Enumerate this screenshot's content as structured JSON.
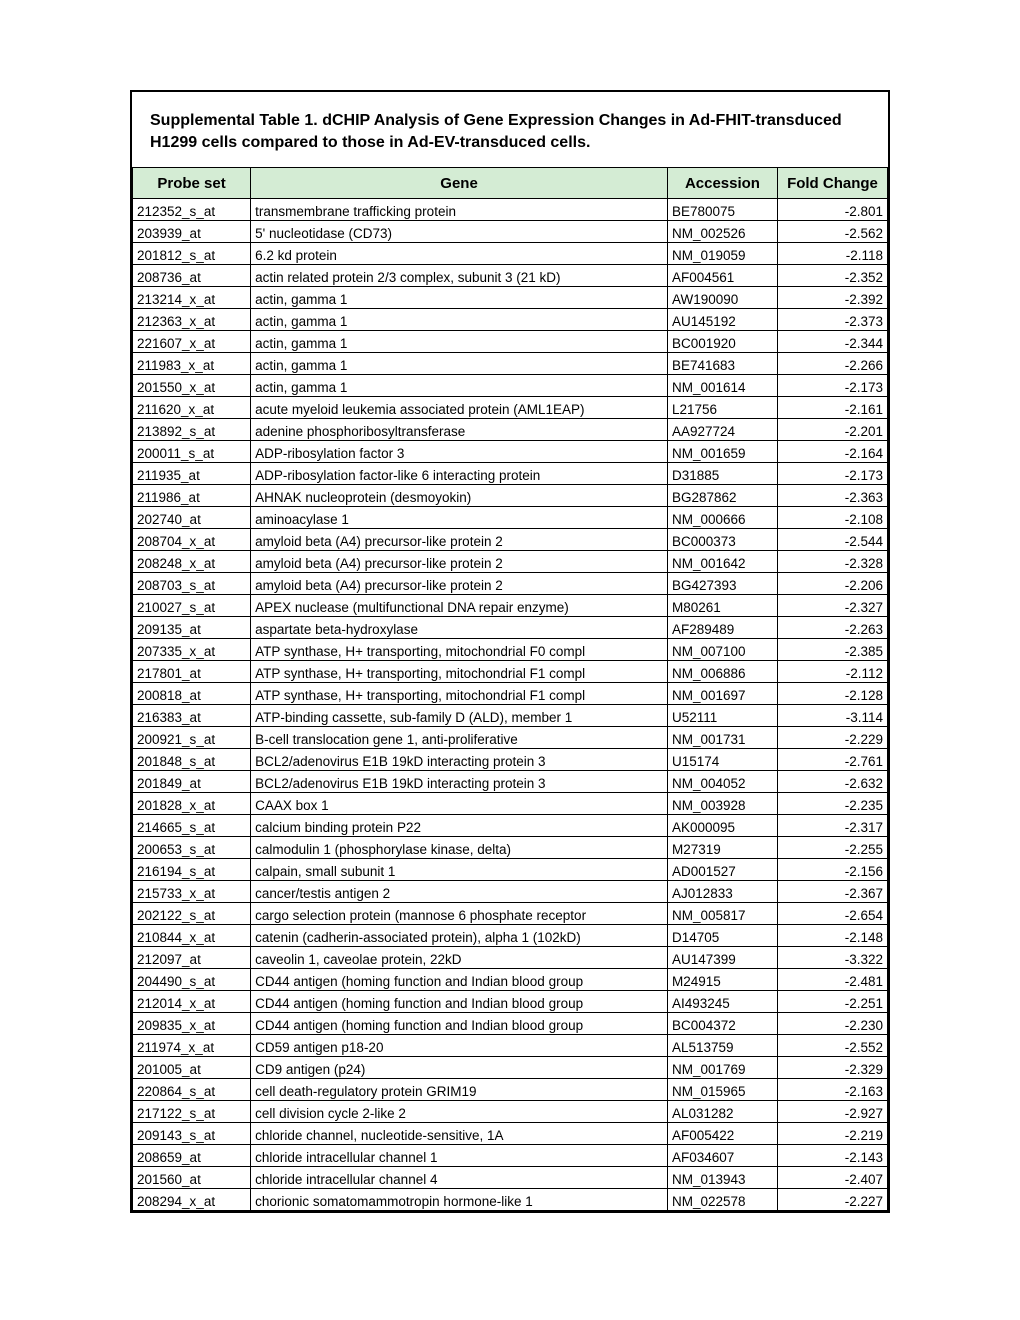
{
  "title": "Supplemental Table 1. dCHIP Analysis of Gene Expression Changes in Ad-FHIT-transduced H1299 cells compared to those in Ad-EV-transduced cells.",
  "columns": [
    "Probe set",
    "Gene",
    "Accession",
    "Fold Change"
  ],
  "header_bg": "#d4ecd4",
  "rows": [
    [
      "212352_s_at",
      " transmembrane trafficking protein",
      "BE780075",
      "-2.801"
    ],
    [
      "203939_at",
      "5' nucleotidase (CD73)",
      "NM_002526",
      "-2.562"
    ],
    [
      "201812_s_at",
      "6.2 kd protein",
      "NM_019059",
      "-2.118"
    ],
    [
      "208736_at",
      "actin related protein 2/3 complex, subunit 3 (21 kD)",
      "AF004561",
      "-2.352"
    ],
    [
      "213214_x_at",
      "actin, gamma 1",
      "AW190090",
      "-2.392"
    ],
    [
      "212363_x_at",
      "actin, gamma 1",
      "AU145192",
      "-2.373"
    ],
    [
      "221607_x_at",
      "actin, gamma 1",
      "BC001920",
      "-2.344"
    ],
    [
      "211983_x_at",
      "actin, gamma 1",
      "BE741683",
      "-2.266"
    ],
    [
      "201550_x_at",
      "actin, gamma 1",
      "NM_001614",
      "-2.173"
    ],
    [
      "211620_x_at",
      "acute myeloid leukemia associated protein (AML1EAP)",
      "L21756",
      "-2.161"
    ],
    [
      "213892_s_at",
      "adenine phosphoribosyltransferase",
      "AA927724",
      "-2.201"
    ],
    [
      "200011_s_at",
      "ADP-ribosylation factor 3",
      "NM_001659",
      "-2.164"
    ],
    [
      "211935_at",
      "ADP-ribosylation factor-like 6 interacting protein",
      "D31885",
      "-2.173"
    ],
    [
      "211986_at",
      "AHNAK nucleoprotein (desmoyokin)",
      "BG287862",
      "-2.363"
    ],
    [
      "202740_at",
      "aminoacylase 1",
      "NM_000666",
      "-2.108"
    ],
    [
      "208704_x_at",
      "amyloid beta (A4) precursor-like protein 2",
      "BC000373",
      "-2.544"
    ],
    [
      "208248_x_at",
      "amyloid beta (A4) precursor-like protein 2",
      "NM_001642",
      "-2.328"
    ],
    [
      "208703_s_at",
      "amyloid beta (A4) precursor-like protein 2",
      "BG427393",
      "-2.206"
    ],
    [
      "210027_s_at",
      "APEX nuclease (multifunctional DNA repair enzyme)",
      "M80261",
      "-2.327"
    ],
    [
      "209135_at",
      "aspartate beta-hydroxylase",
      "AF289489",
      "-2.263"
    ],
    [
      "207335_x_at",
      "ATP synthase, H+ transporting, mitochondrial F0 compl",
      "NM_007100",
      "-2.385"
    ],
    [
      "217801_at",
      "ATP synthase, H+ transporting, mitochondrial F1 compl",
      "NM_006886",
      "-2.112"
    ],
    [
      "200818_at",
      "ATP synthase, H+ transporting, mitochondrial F1 compl",
      "NM_001697",
      "-2.128"
    ],
    [
      "216383_at",
      "ATP-binding cassette, sub-family D (ALD), member 1",
      "U52111",
      "-3.114"
    ],
    [
      "200921_s_at",
      "B-cell translocation gene 1, anti-proliferative",
      "NM_001731",
      "-2.229"
    ],
    [
      "201848_s_at",
      "BCL2/adenovirus E1B 19kD interacting protein 3",
      "U15174",
      "-2.761"
    ],
    [
      "201849_at",
      "BCL2/adenovirus E1B 19kD interacting protein 3",
      "NM_004052",
      "-2.632"
    ],
    [
      "201828_x_at",
      "CAAX box 1",
      "NM_003928",
      "-2.235"
    ],
    [
      "214665_s_at",
      "calcium binding protein P22",
      "AK000095",
      "-2.317"
    ],
    [
      "200653_s_at",
      "calmodulin 1 (phosphorylase kinase, delta)",
      "M27319",
      "-2.255"
    ],
    [
      "216194_s_at",
      "calpain, small subunit 1",
      "AD001527",
      "-2.156"
    ],
    [
      "215733_x_at",
      "cancer/testis antigen 2",
      "AJ012833",
      "-2.367"
    ],
    [
      "202122_s_at",
      "cargo selection protein (mannose 6 phosphate receptor",
      "NM_005817",
      "-2.654"
    ],
    [
      "210844_x_at",
      "catenin (cadherin-associated protein), alpha 1 (102kD)",
      "D14705",
      "-2.148"
    ],
    [
      "212097_at",
      "caveolin 1, caveolae protein, 22kD",
      "AU147399",
      "-3.322"
    ],
    [
      "204490_s_at",
      "CD44 antigen (homing function and Indian blood group",
      "M24915",
      "-2.481"
    ],
    [
      "212014_x_at",
      "CD44 antigen (homing function and Indian blood group",
      "AI493245",
      "-2.251"
    ],
    [
      "209835_x_at",
      "CD44 antigen (homing function and Indian blood group",
      "BC004372",
      "-2.230"
    ],
    [
      "211974_x_at",
      "CD59 antigen p18-20",
      "AL513759",
      "-2.552"
    ],
    [
      "201005_at",
      "CD9 antigen (p24)",
      "NM_001769",
      "-2.329"
    ],
    [
      "220864_s_at",
      "cell death-regulatory protein GRIM19",
      "NM_015965",
      "-2.163"
    ],
    [
      "217122_s_at",
      "cell division cycle 2-like 2",
      "AL031282",
      "-2.927"
    ],
    [
      "209143_s_at",
      "chloride channel, nucleotide-sensitive, 1A",
      "AF005422",
      "-2.219"
    ],
    [
      "208659_at",
      "chloride intracellular channel 1",
      "AF034607",
      "-2.143"
    ],
    [
      "201560_at",
      "chloride intracellular channel 4",
      "NM_013943",
      "-2.407"
    ],
    [
      "208294_x_at",
      "chorionic somatomammotropin hormone-like 1",
      "NM_022578",
      "-2.227"
    ]
  ]
}
